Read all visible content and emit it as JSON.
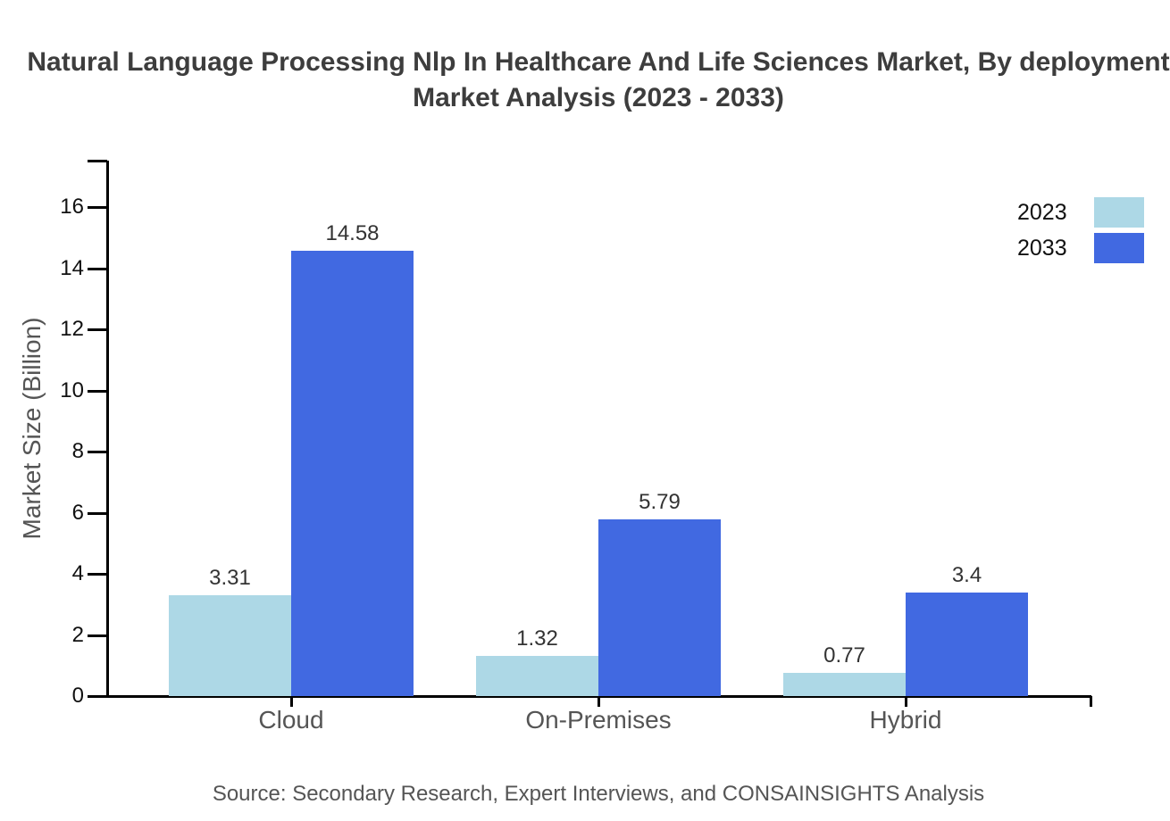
{
  "title": {
    "line1": "Natural Language Processing Nlp In Healthcare And Life Sciences Market, By deployment",
    "line2": "Market Analysis (2023 - 2033)"
  },
  "source": "Source: Secondary Research, Expert Interviews, and CONSAINSIGHTS Analysis",
  "legend": {
    "items": [
      {
        "label": "2023",
        "color": "#add8e6"
      },
      {
        "label": "2033",
        "color": "#4169e1"
      }
    ]
  },
  "colors": {
    "series_2023": "#add8e6",
    "series_2033": "#4169e1",
    "axis_line": "#000000",
    "title_text": "#3d3d3d",
    "tick_text": "#111111",
    "muted_text": "#555555",
    "value_text": "#333333"
  },
  "chart_data": {
    "type": "bar",
    "title": "Natural Language Processing Nlp In Healthcare And Life Sciences Market, By deployment Market Analysis (2023 - 2033)",
    "categories": [
      "Cloud",
      "On-Premises",
      "Hybrid"
    ],
    "series": [
      {
        "name": "2023",
        "values": [
          3.31,
          1.32,
          0.77
        ]
      },
      {
        "name": "2033",
        "values": [
          14.58,
          5.79,
          3.4
        ]
      }
    ],
    "xlabel": "",
    "ylabel": "Market Size (Billion)",
    "yticks": [
      0,
      2,
      4,
      6,
      8,
      10,
      12,
      14,
      16
    ],
    "ylim": [
      0,
      17.5
    ],
    "grid": false,
    "legend_position": "top-right",
    "value_labels_shown": true
  }
}
